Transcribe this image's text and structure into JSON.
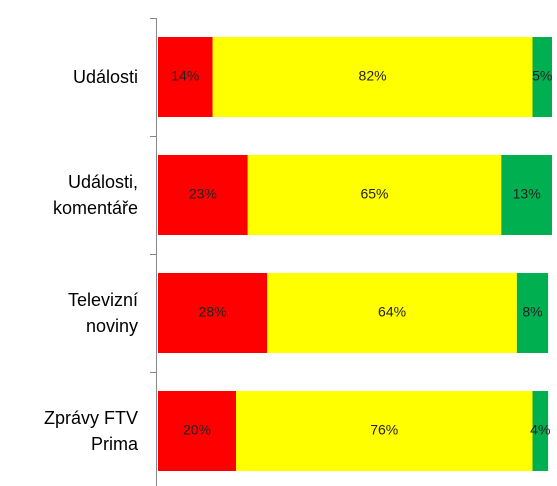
{
  "chart_data": {
    "type": "stacked-bar-horizontal",
    "categories": [
      "Události",
      "Události,\nkomentáře",
      "Televizní\nnoviny",
      "Zprávy FTV\nPrima"
    ],
    "series": [
      {
        "color": "#ff0000",
        "values": [
          14,
          23,
          28,
          20
        ],
        "value_labels": [
          "14%",
          "23%",
          "28%",
          "20%"
        ]
      },
      {
        "color": "#ffff00",
        "values": [
          82,
          65,
          64,
          76
        ],
        "value_labels": [
          "82%",
          "65%",
          "64%",
          "76%"
        ]
      },
      {
        "color": "#00b050",
        "values": [
          5,
          13,
          8,
          4
        ],
        "value_labels": [
          "5%",
          "13%",
          "8%",
          "4%"
        ]
      }
    ],
    "xlim": [
      0,
      101
    ]
  }
}
